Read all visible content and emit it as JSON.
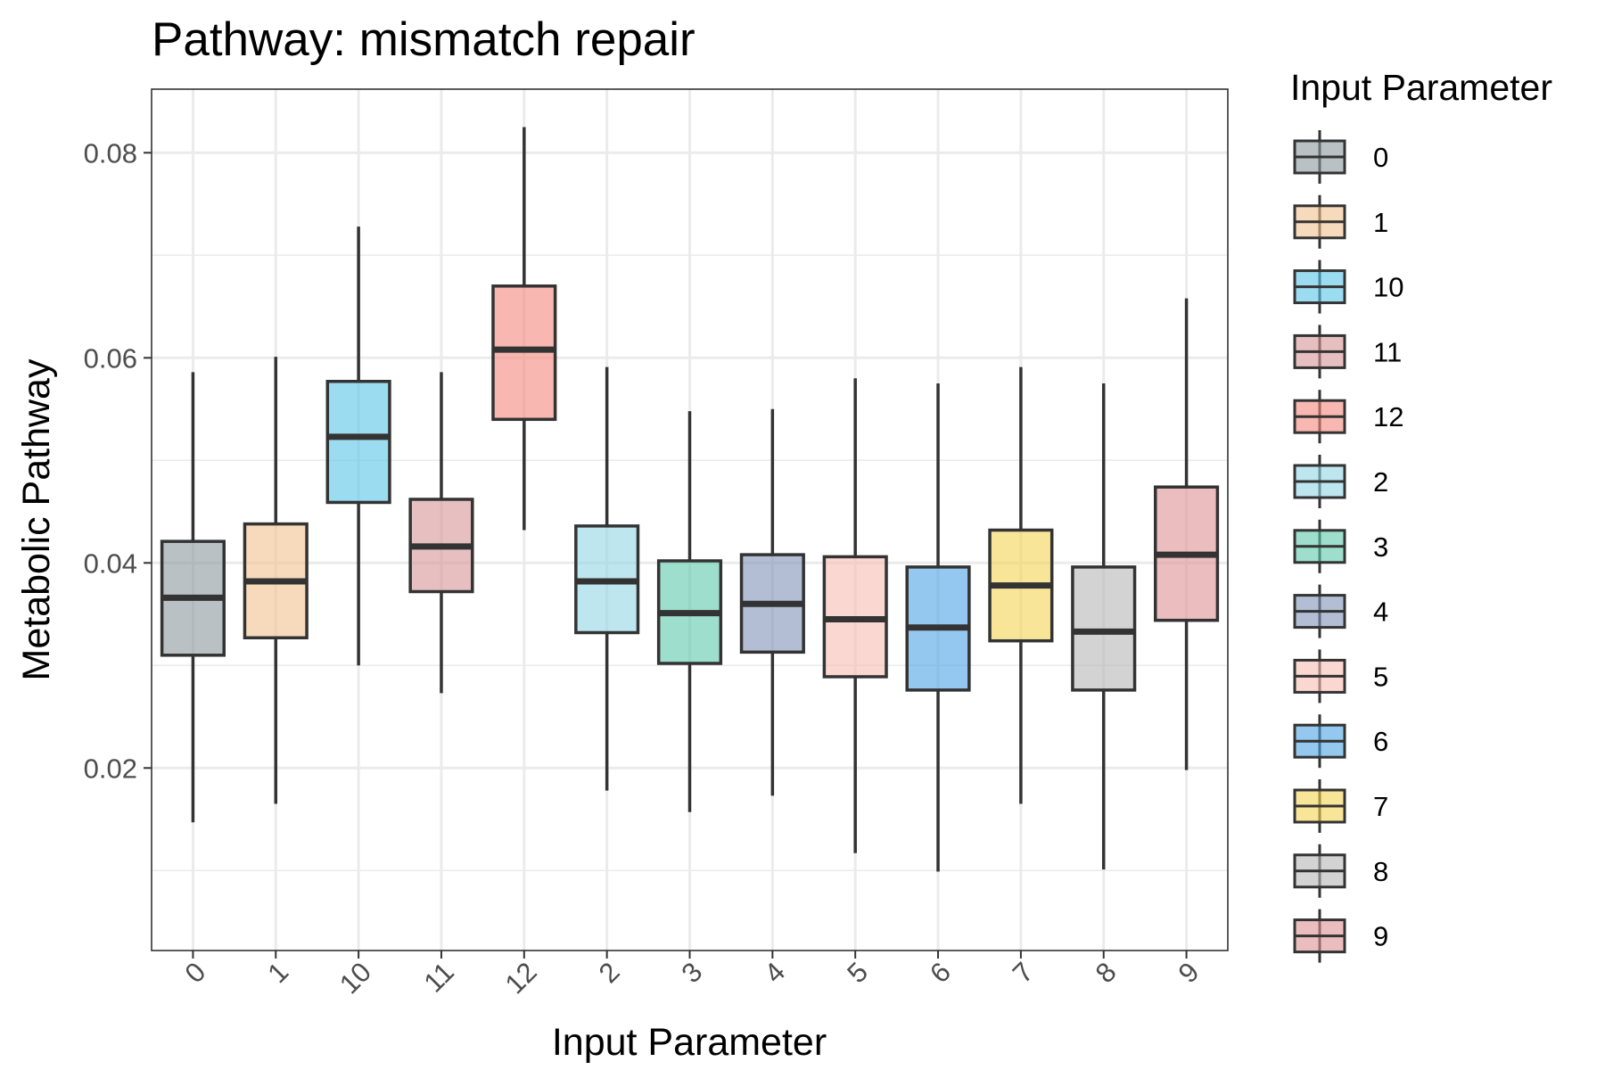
{
  "chart_data": {
    "type": "boxplot",
    "title": "Pathway: mismatch repair",
    "xlabel": "Input Parameter",
    "ylabel": "Metabolic Pathway",
    "ylim": [
      0.0022,
      0.0862
    ],
    "yticks": [
      "0.02",
      "0.04",
      "0.06",
      "0.08"
    ],
    "ytick_values": [
      0.02,
      0.04,
      0.06,
      0.08
    ],
    "grid": true,
    "legend": {
      "title": "Input Parameter",
      "position": "right"
    },
    "series": [
      {
        "name": "0",
        "color": "#8c979c",
        "whisker_low": 0.0147,
        "q1": 0.031,
        "median": 0.0366,
        "q3": 0.0421,
        "whisker_high": 0.0586
      },
      {
        "name": "1",
        "color": "#f1c28e",
        "whisker_low": 0.0165,
        "q1": 0.0327,
        "median": 0.0382,
        "q3": 0.0438,
        "whisker_high": 0.0601
      },
      {
        "name": "10",
        "color": "#58c4e8",
        "whisker_low": 0.03,
        "q1": 0.0459,
        "median": 0.0523,
        "q3": 0.0577,
        "whisker_high": 0.0728
      },
      {
        "name": "11",
        "color": "#d79497",
        "whisker_low": 0.0273,
        "q1": 0.0372,
        "median": 0.0416,
        "q3": 0.0462,
        "whisker_high": 0.0586
      },
      {
        "name": "12",
        "color": "#f4877c",
        "whisker_low": 0.0432,
        "q1": 0.054,
        "median": 0.0608,
        "q3": 0.067,
        "whisker_high": 0.0825
      },
      {
        "name": "2",
        "color": "#92d6e4",
        "whisker_low": 0.0178,
        "q1": 0.0332,
        "median": 0.0382,
        "q3": 0.0436,
        "whisker_high": 0.0591
      },
      {
        "name": "3",
        "color": "#5dc8ac",
        "whisker_low": 0.0157,
        "q1": 0.0302,
        "median": 0.0351,
        "q3": 0.0402,
        "whisker_high": 0.0548
      },
      {
        "name": "4",
        "color": "#8193b8",
        "whisker_low": 0.0173,
        "q1": 0.0313,
        "median": 0.036,
        "q3": 0.0408,
        "whisker_high": 0.055
      },
      {
        "name": "5",
        "color": "#f7bdb1",
        "whisker_low": 0.0117,
        "q1": 0.0289,
        "median": 0.0345,
        "q3": 0.0406,
        "whisker_high": 0.058
      },
      {
        "name": "6",
        "color": "#4da3e2",
        "whisker_low": 0.0099,
        "q1": 0.0276,
        "median": 0.0337,
        "q3": 0.0396,
        "whisker_high": 0.0575
      },
      {
        "name": "7",
        "color": "#f3d454",
        "whisker_low": 0.0165,
        "q1": 0.0324,
        "median": 0.0378,
        "q3": 0.0432,
        "whisker_high": 0.0591
      },
      {
        "name": "8",
        "color": "#b5b5b5",
        "whisker_low": 0.0101,
        "q1": 0.0276,
        "median": 0.0333,
        "q3": 0.0396,
        "whisker_high": 0.0575
      },
      {
        "name": "9",
        "color": "#e09194",
        "whisker_low": 0.0198,
        "q1": 0.0344,
        "median": 0.0408,
        "q3": 0.0474,
        "whisker_high": 0.0658
      }
    ]
  }
}
